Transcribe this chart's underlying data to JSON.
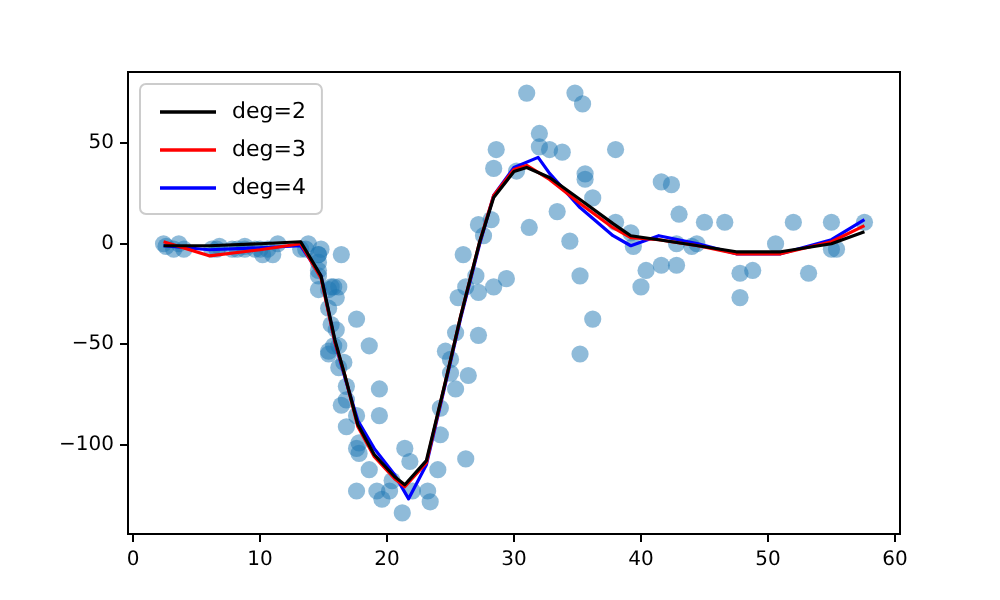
{
  "chart_data": {
    "type": "scatter",
    "xlim": [
      -0.4,
      60.4
    ],
    "ylim": [
      -144.5,
      85.5
    ],
    "xticks": [
      0,
      10,
      20,
      30,
      40,
      50,
      60
    ],
    "yticks": [
      -100,
      -50,
      0,
      50
    ],
    "legend": "top left",
    "grid": false,
    "series": [
      {
        "color": "#1f77b4",
        "marker": "circle",
        "x": [
          2.4,
          2.6,
          3.2,
          3.6,
          4.0,
          6.2,
          6.6,
          6.8,
          7.8,
          8.2,
          8.8,
          8.8,
          9.6,
          10.0,
          10.2,
          10.6,
          11.0,
          11.4,
          13.2,
          13.6,
          13.8,
          14.6,
          14.6,
          14.6,
          14.6,
          14.6,
          14.6,
          14.8,
          15.4,
          15.4,
          15.4,
          15.4,
          15.6,
          15.6,
          15.8,
          15.8,
          16.0,
          16.0,
          16.2,
          16.2,
          16.2,
          16.4,
          16.4,
          16.6,
          16.8,
          16.8,
          16.8,
          17.6,
          17.6,
          17.6,
          17.6,
          17.8,
          17.8,
          18.6,
          18.6,
          19.2,
          19.4,
          19.4,
          19.6,
          20.2,
          20.4,
          21.2,
          21.4,
          21.8,
          22.0,
          23.2,
          23.4,
          24.0,
          24.2,
          24.2,
          24.6,
          25.0,
          25.0,
          25.4,
          25.4,
          25.6,
          26.0,
          26.2,
          26.2,
          26.4,
          27.0,
          27.2,
          27.2,
          27.2,
          27.6,
          28.2,
          28.4,
          28.4,
          28.6,
          29.4,
          30.2,
          31.0,
          31.2,
          32.0,
          32.0,
          32.8,
          33.4,
          33.8,
          34.4,
          34.8,
          35.2,
          35.2,
          35.4,
          35.6,
          35.6,
          36.2,
          36.2,
          38.0,
          38.0,
          39.2,
          39.4,
          40.0,
          40.4,
          41.6,
          41.6,
          42.4,
          42.8,
          42.8,
          43.0,
          44.0,
          44.4,
          45.0,
          46.6,
          47.8,
          47.8,
          48.8,
          50.6,
          52.0,
          53.2,
          55.0,
          55.0,
          55.4,
          57.6
        ],
        "values": [
          0.0,
          -1.3,
          -2.7,
          0.0,
          -2.7,
          -2.7,
          -2.7,
          -1.3,
          -2.7,
          -2.7,
          -1.3,
          -2.7,
          -2.7,
          -2.7,
          -5.4,
          -2.7,
          -5.4,
          0.0,
          -2.7,
          -2.7,
          0.0,
          -13.3,
          -5.4,
          -5.4,
          -9.3,
          -16.0,
          -22.8,
          -2.7,
          -22.8,
          -32.1,
          -53.5,
          -54.9,
          -40.2,
          -21.5,
          -21.5,
          -50.8,
          -42.9,
          -26.8,
          -21.5,
          -50.8,
          -61.7,
          -5.4,
          -80.4,
          -59.0,
          -71.0,
          -91.1,
          -77.7,
          -37.5,
          -85.6,
          -123.1,
          -101.9,
          -99.1,
          -104.4,
          -112.5,
          -50.8,
          -123.1,
          -85.6,
          -72.3,
          -127.2,
          -123.1,
          -117.9,
          -134.0,
          -101.9,
          -108.4,
          -123.1,
          -123.1,
          -128.5,
          -112.5,
          -95.1,
          -81.8,
          -53.5,
          -64.4,
          -57.6,
          -72.3,
          -44.3,
          -26.8,
          -5.4,
          -107.1,
          -21.5,
          -65.6,
          -16.0,
          -45.6,
          -24.2,
          9.5,
          4.0,
          12.0,
          -21.5,
          37.5,
          46.9,
          -17.4,
          36.2,
          75.0,
          8.1,
          54.9,
          48.2,
          46.9,
          16.0,
          45.6,
          1.3,
          75.0,
          -16.0,
          -54.9,
          69.6,
          34.8,
          32.1,
          -37.5,
          22.8,
          46.9,
          10.7,
          5.4,
          -1.3,
          -21.5,
          -13.3,
          30.8,
          -10.7,
          29.4,
          0.0,
          -10.7,
          14.7,
          -1.3,
          0.0,
          10.7,
          10.7,
          -26.8,
          -14.7,
          -13.3,
          0.0,
          10.7,
          -14.7,
          -2.7,
          10.7,
          -2.7,
          10.7
        ]
      },
      {
        "type": "line",
        "name": "deg=2",
        "color": "#000000",
        "marker": "none",
        "x": [
          2.4,
          6,
          10,
          13.2,
          14.8,
          15.9,
          16.7,
          17.7,
          19,
          20.6,
          21.4,
          23.1,
          24.7,
          25.8,
          27.3,
          28.4,
          30,
          31,
          32.8,
          35.2,
          37.8,
          39.2,
          41.4,
          44.5,
          47.5,
          51,
          55,
          57.6
        ],
        "values": [
          -1,
          -1,
          0,
          1,
          -16,
          -48,
          -66,
          -90,
          -105,
          -116,
          -120,
          -108,
          -66,
          -36,
          1,
          23,
          36,
          38,
          33,
          22,
          10,
          4,
          2,
          -1,
          -4,
          -4,
          0,
          6
        ]
      },
      {
        "type": "line",
        "name": "deg=3",
        "color": "#ff0000",
        "marker": "none",
        "x": [
          2.4,
          6,
          10,
          13.2,
          14.8,
          15.9,
          16.7,
          17.7,
          19,
          20.6,
          21.4,
          23.1,
          24.7,
          25.8,
          27.3,
          28.4,
          30,
          31,
          32.8,
          35.2,
          37.8,
          39.2,
          41.4,
          44.5,
          47.5,
          51,
          55,
          57.6
        ],
        "values": [
          1,
          -6,
          -3,
          0,
          -17,
          -49,
          -66,
          -91,
          -106,
          -117,
          -121,
          -109,
          -66,
          -36,
          1,
          24,
          37,
          39,
          32,
          20,
          8,
          3,
          2,
          -1,
          -5,
          -5,
          1,
          9
        ]
      },
      {
        "type": "line",
        "name": "deg=4",
        "color": "#0000ff",
        "marker": "none",
        "x": [
          2.4,
          6,
          10,
          13.2,
          14.8,
          15.9,
          16.7,
          17.7,
          19,
          20.6,
          21.7,
          23.1,
          24.7,
          25.8,
          27.3,
          28.4,
          30,
          31.9,
          32.8,
          35.2,
          37.8,
          39.2,
          41.4,
          44.5,
          47.5,
          51,
          55,
          57.6
        ],
        "values": [
          -1,
          -3,
          -2,
          -1,
          -16,
          -49,
          -67,
          -88,
          -102,
          -115,
          -127,
          -110,
          -67,
          -37,
          0,
          24,
          38,
          43,
          35,
          18,
          4,
          -1,
          4,
          0,
          -5,
          -5,
          2,
          12
        ]
      }
    ]
  }
}
